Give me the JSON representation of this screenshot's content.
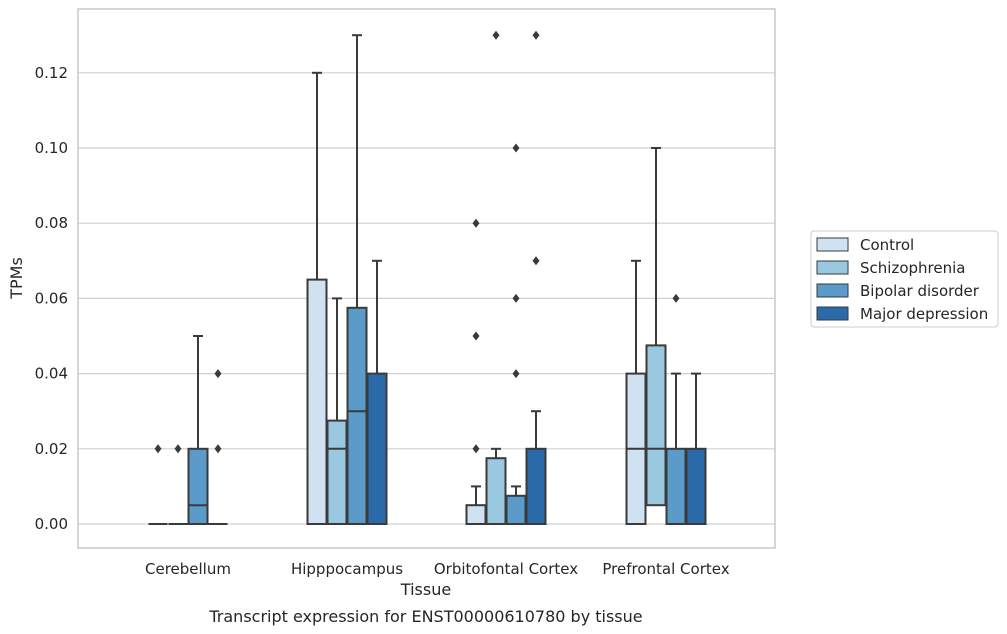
{
  "caption": "Transcript expression for ENST00000610780 by tissue",
  "chart_data": {
    "type": "box",
    "title": "",
    "xlabel": "Tissue",
    "ylabel": "TPMs",
    "ylim": [
      -0.0065,
      0.137
    ],
    "yticks": [
      "0.00",
      "0.02",
      "0.04",
      "0.06",
      "0.08",
      "0.10",
      "0.12"
    ],
    "grid": "horizontal",
    "legend_position": "right",
    "categories": [
      "Cerebellum",
      "Hipppocampus",
      "Orbitofontal Cortex",
      "Prefrontal Cortex"
    ],
    "series": [
      {
        "name": "Control",
        "color": "#d0e1f2",
        "boxes": [
          {
            "q1": 0,
            "median": 0,
            "q3": 0,
            "whislo": 0,
            "whishi": 0,
            "fliers": [
              0.02
            ]
          },
          {
            "q1": 0,
            "median": 0,
            "q3": 0.065,
            "whislo": 0,
            "whishi": 0.12,
            "fliers": []
          },
          {
            "q1": 0,
            "median": 0,
            "q3": 0.005,
            "whislo": 0,
            "whishi": 0.01,
            "fliers": [
              0.02,
              0.05,
              0.08
            ]
          },
          {
            "q1": 0,
            "median": 0.02,
            "q3": 0.04,
            "whislo": 0,
            "whishi": 0.07,
            "fliers": []
          }
        ]
      },
      {
        "name": "Schizophrenia",
        "color": "#9ac8e0",
        "boxes": [
          {
            "q1": 0,
            "median": 0,
            "q3": 0,
            "whislo": 0,
            "whishi": 0,
            "fliers": [
              0.02
            ]
          },
          {
            "q1": 0,
            "median": 0.02,
            "q3": 0.0275,
            "whislo": 0,
            "whishi": 0.06,
            "fliers": []
          },
          {
            "q1": 0,
            "median": 0,
            "q3": 0.0175,
            "whislo": 0,
            "whishi": 0.02,
            "fliers": [
              0.13
            ]
          },
          {
            "q1": 0.005,
            "median": 0.02,
            "q3": 0.0475,
            "whislo": 0,
            "whishi": 0.1,
            "fliers": []
          }
        ]
      },
      {
        "name": "Bipolar disorder",
        "color": "#5b9bc9",
        "boxes": [
          {
            "q1": 0,
            "median": 0.005,
            "q3": 0.02,
            "whislo": 0,
            "whishi": 0.05,
            "fliers": []
          },
          {
            "q1": 0,
            "median": 0.03,
            "q3": 0.0575,
            "whislo": 0,
            "whishi": 0.13,
            "fliers": []
          },
          {
            "q1": 0,
            "median": 0,
            "q3": 0.0075,
            "whislo": 0,
            "whishi": 0.01,
            "fliers": [
              0.04,
              0.06,
              0.1
            ]
          },
          {
            "q1": 0,
            "median": 0,
            "q3": 0.02,
            "whislo": 0,
            "whishi": 0.04,
            "fliers": [
              0.06
            ]
          }
        ]
      },
      {
        "name": "Major depression",
        "color": "#2b6aa8",
        "boxes": [
          {
            "q1": 0,
            "median": 0,
            "q3": 0,
            "whislo": 0,
            "whishi": 0,
            "fliers": [
              0.02,
              0.04
            ]
          },
          {
            "q1": 0,
            "median": 0,
            "q3": 0.04,
            "whislo": 0,
            "whishi": 0.07,
            "fliers": []
          },
          {
            "q1": 0,
            "median": 0,
            "q3": 0.02,
            "whislo": 0,
            "whishi": 0.03,
            "fliers": [
              0.07,
              0.13
            ]
          },
          {
            "q1": 0,
            "median": 0,
            "q3": 0.02,
            "whislo": 0,
            "whishi": 0.04,
            "fliers": []
          }
        ]
      }
    ]
  },
  "colors": {
    "edge": "#3a3a3a",
    "grid": "#d0d0d0",
    "frame": "#c8c8c8",
    "text": "#262626"
  }
}
